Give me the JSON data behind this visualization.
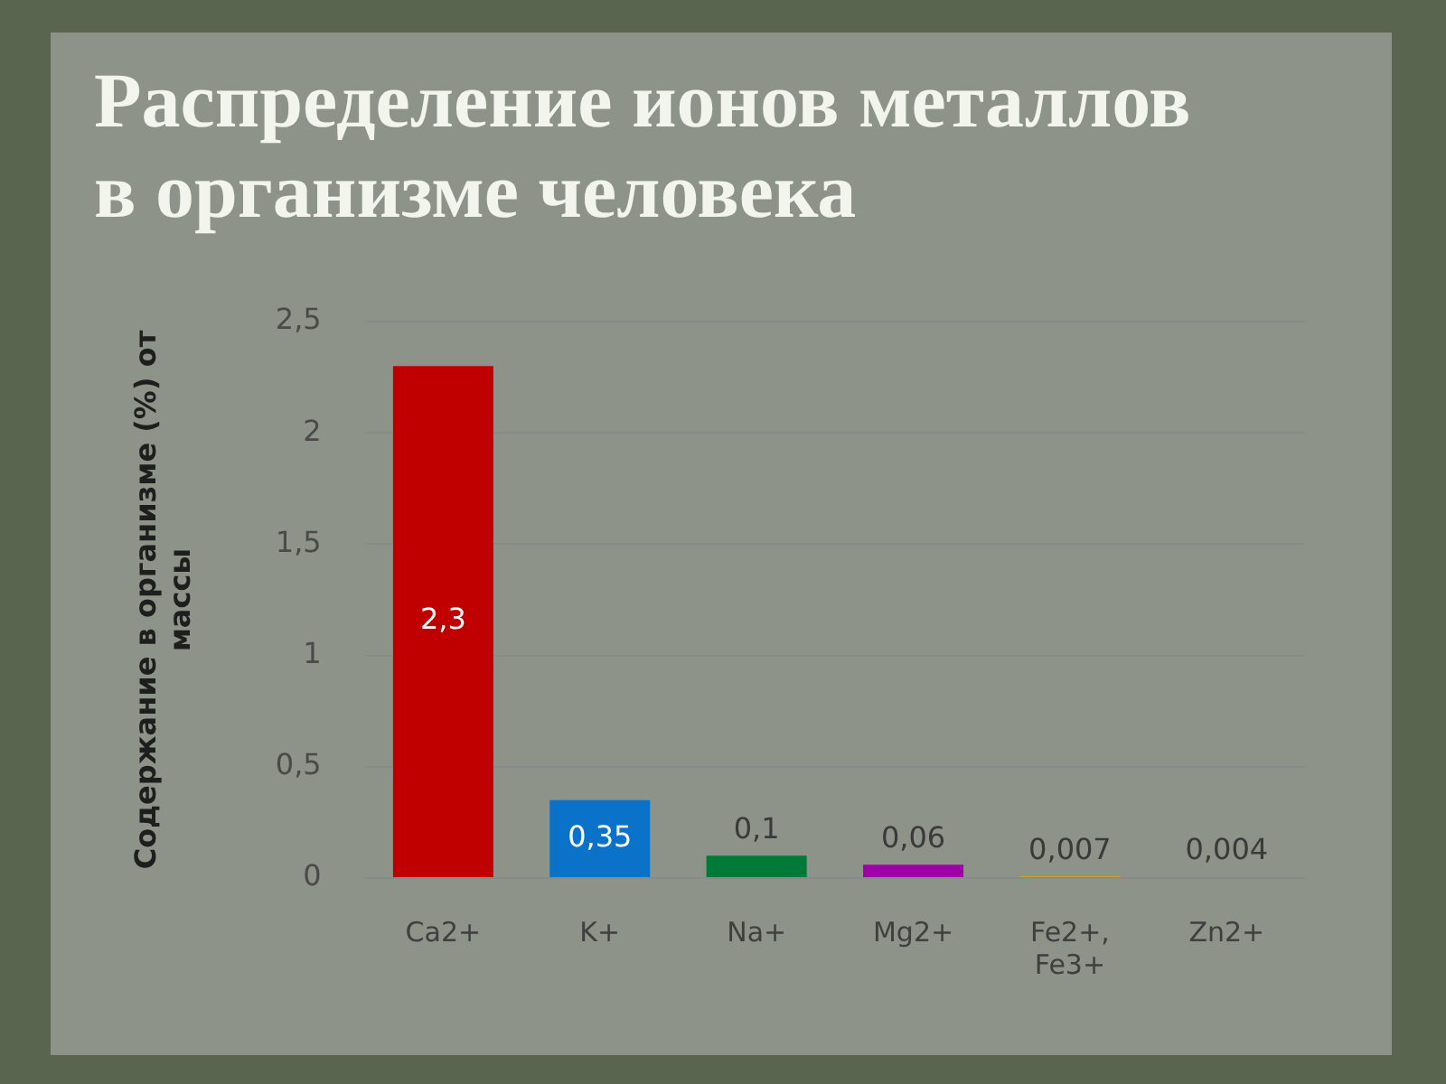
{
  "chart_data": {
    "type": "bar",
    "title": "Распределение ионов металлов в организме человека",
    "ylabel": "Содержание в организме (%) от массы",
    "categories": [
      "Ca2+",
      "K+",
      "Na+",
      "Mg2+",
      "Fe2+, Fe3+",
      "Zn2+"
    ],
    "values": [
      2.3,
      0.35,
      0.1,
      0.06,
      0.007,
      0.004
    ],
    "colors": [
      "#c00000",
      "#0a72c8",
      "#007a36",
      "#a000a8",
      "#e0a800",
      "#777777"
    ],
    "value_labels": [
      "2,3",
      "0,35",
      "0,1",
      "0,06",
      "0,007",
      "0,004"
    ],
    "ylim": [
      0,
      2.5
    ],
    "yticks": [
      0,
      {
        "value": 0.5,
        "label": "0,5"
      },
      1,
      {
        "value": 1.5,
        "label": "1,5"
      },
      2,
      {
        "value": 2.5,
        "label": "2,5"
      }
    ],
    "grid": "y"
  }
}
